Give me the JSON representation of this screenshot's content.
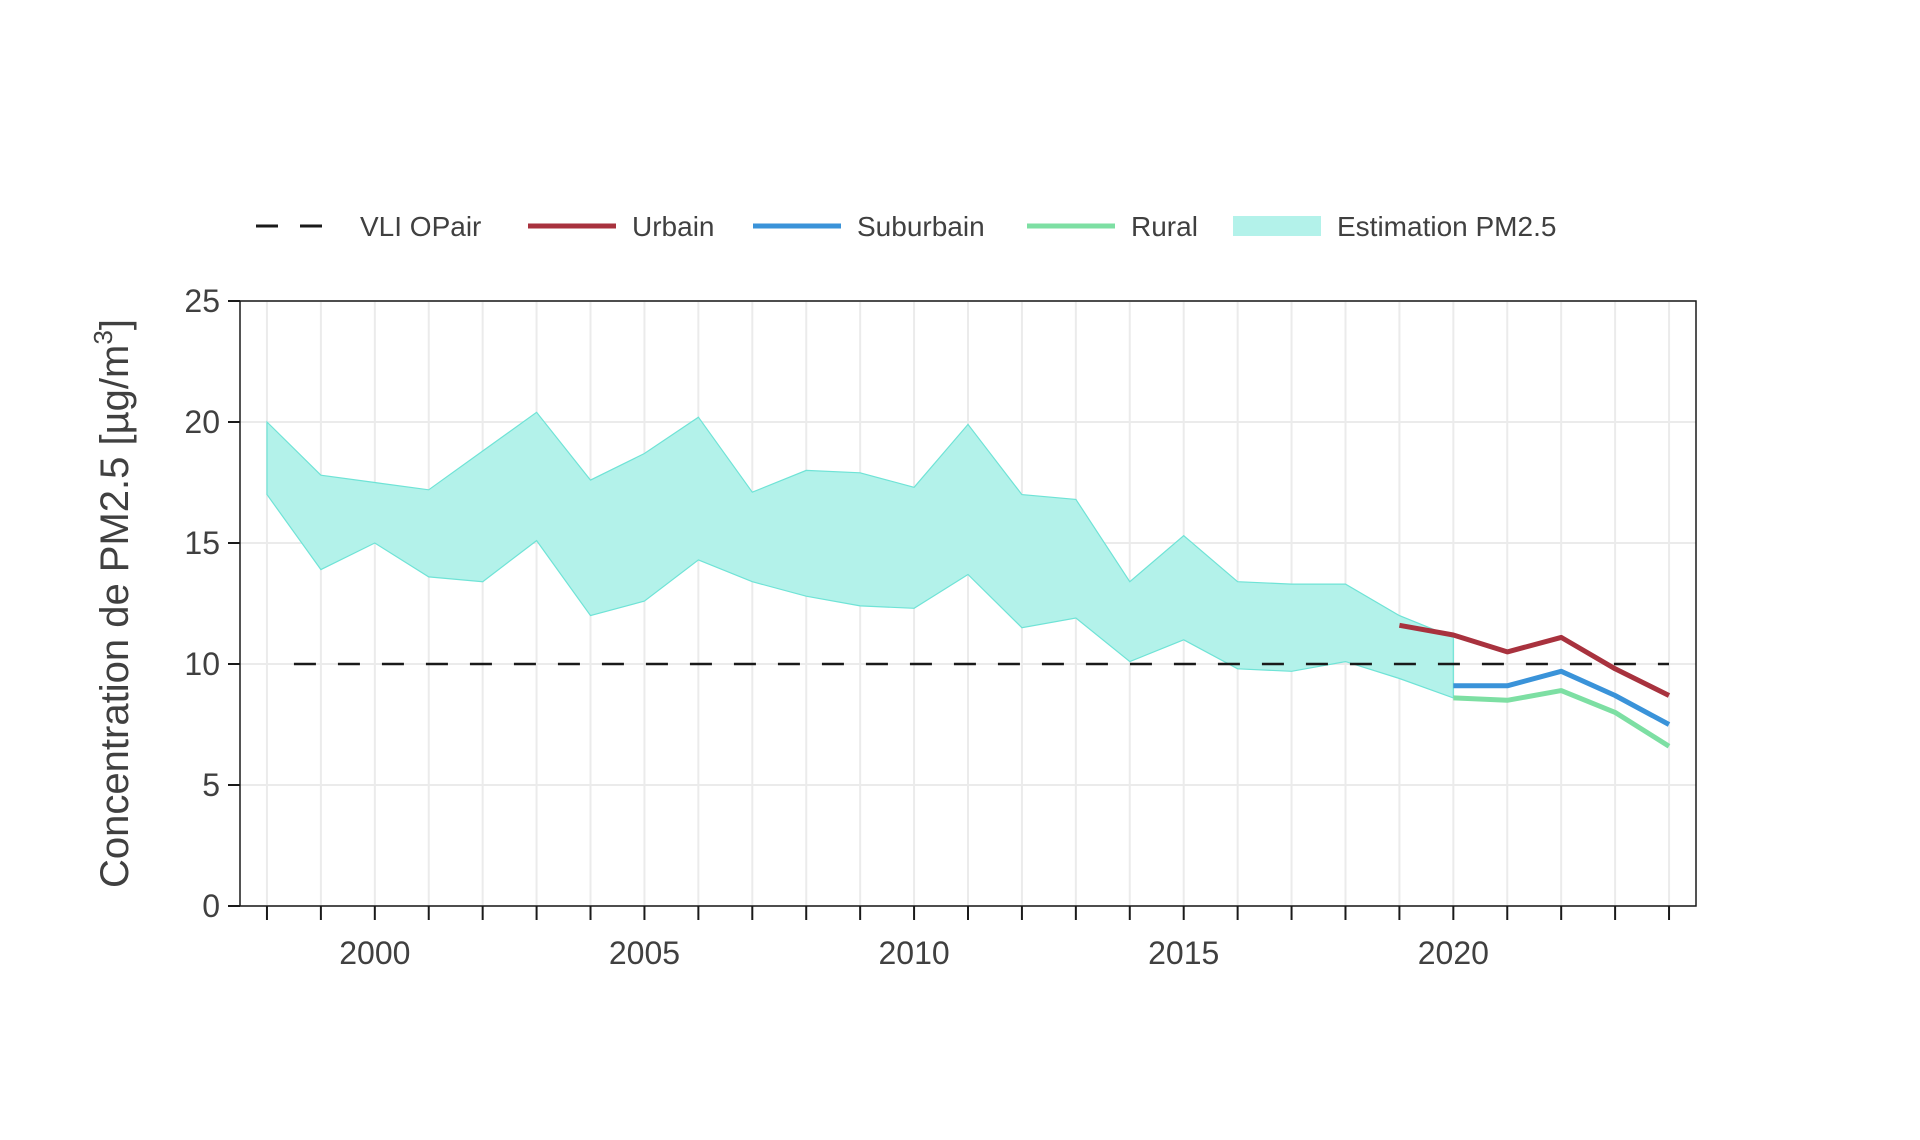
{
  "chart_data": {
    "type": "line",
    "title": "",
    "xlabel": "",
    "ylabel": "Concentration de PM2.5 [µg/m",
    "ylabel_superscript": "3",
    "ylabel_suffix": "]",
    "xlim": [
      1997.5,
      2024.5
    ],
    "ylim": [
      0,
      25
    ],
    "x_tick_labels": [
      {
        "x": 2000,
        "label": "2000"
      },
      {
        "x": 2005,
        "label": "2005"
      },
      {
        "x": 2010,
        "label": "2010"
      },
      {
        "x": 2015,
        "label": "2015"
      },
      {
        "x": 2020,
        "label": "2020"
      }
    ],
    "minor_x_ticks": [
      1998,
      1999,
      2000,
      2001,
      2002,
      2003,
      2004,
      2005,
      2006,
      2007,
      2008,
      2009,
      2010,
      2011,
      2012,
      2013,
      2014,
      2015,
      2016,
      2017,
      2018,
      2019,
      2020,
      2021,
      2022,
      2023,
      2024
    ],
    "y_tick_labels": [
      {
        "y": 0,
        "label": "0"
      },
      {
        "y": 5,
        "label": "5"
      },
      {
        "y": 10,
        "label": "10"
      },
      {
        "y": 15,
        "label": "15"
      },
      {
        "y": 20,
        "label": "20"
      },
      {
        "y": 25,
        "label": "25"
      }
    ],
    "grid": true,
    "legend_position": "top",
    "legend": [
      {
        "name": "VLI OPair",
        "style": "dashed",
        "color": "#1a1a1a"
      },
      {
        "name": "Urbain",
        "style": "line",
        "color": "#a8323e"
      },
      {
        "name": "Suburbain",
        "style": "line",
        "color": "#3a93d9"
      },
      {
        "name": "Rural",
        "style": "line",
        "color": "#7ddfa3"
      },
      {
        "name": "Estimation PM2.5",
        "style": "band",
        "color": "#b3f2ea"
      }
    ],
    "reference_line": {
      "name": "VLI OPair",
      "y": 10,
      "x_range": [
        1998.5,
        2024
      ],
      "color": "#1a1a1a"
    },
    "band": {
      "name": "Estimation PM2.5",
      "color": "#b3f2ea",
      "edge_color": "#6fe3d6",
      "x": [
        1998,
        1999,
        2000,
        2001,
        2002,
        2003,
        2004,
        2005,
        2006,
        2007,
        2008,
        2009,
        2010,
        2011,
        2012,
        2013,
        2014,
        2015,
        2016,
        2017,
        2018,
        2019,
        2020
      ],
      "upper": [
        20.0,
        17.8,
        17.5,
        17.2,
        18.8,
        20.4,
        17.6,
        18.7,
        20.2,
        17.1,
        18.0,
        17.9,
        17.3,
        19.9,
        17.0,
        16.8,
        13.4,
        15.3,
        13.4,
        13.3,
        13.3,
        12.0,
        11.1
      ],
      "lower": [
        17.0,
        13.9,
        15.0,
        13.6,
        13.4,
        15.1,
        12.0,
        12.6,
        14.3,
        13.4,
        12.8,
        12.4,
        12.3,
        13.7,
        11.5,
        11.9,
        10.1,
        11.0,
        9.8,
        9.7,
        10.1,
        9.4,
        8.6
      ]
    },
    "series": [
      {
        "name": "Urbain",
        "color": "#a8323e",
        "x": [
          2019,
          2020,
          2021,
          2022,
          2023,
          2024
        ],
        "values": [
          11.6,
          11.2,
          10.5,
          11.1,
          9.8,
          8.7
        ]
      },
      {
        "name": "Suburbain",
        "color": "#3a93d9",
        "x": [
          2020,
          2021,
          2022,
          2023,
          2024
        ],
        "values": [
          9.1,
          9.1,
          9.7,
          8.7,
          7.5
        ]
      },
      {
        "name": "Rural",
        "color": "#7ddfa3",
        "x": [
          2020,
          2021,
          2022,
          2023,
          2024
        ],
        "values": [
          8.6,
          8.5,
          8.9,
          8.0,
          6.6
        ]
      }
    ]
  }
}
